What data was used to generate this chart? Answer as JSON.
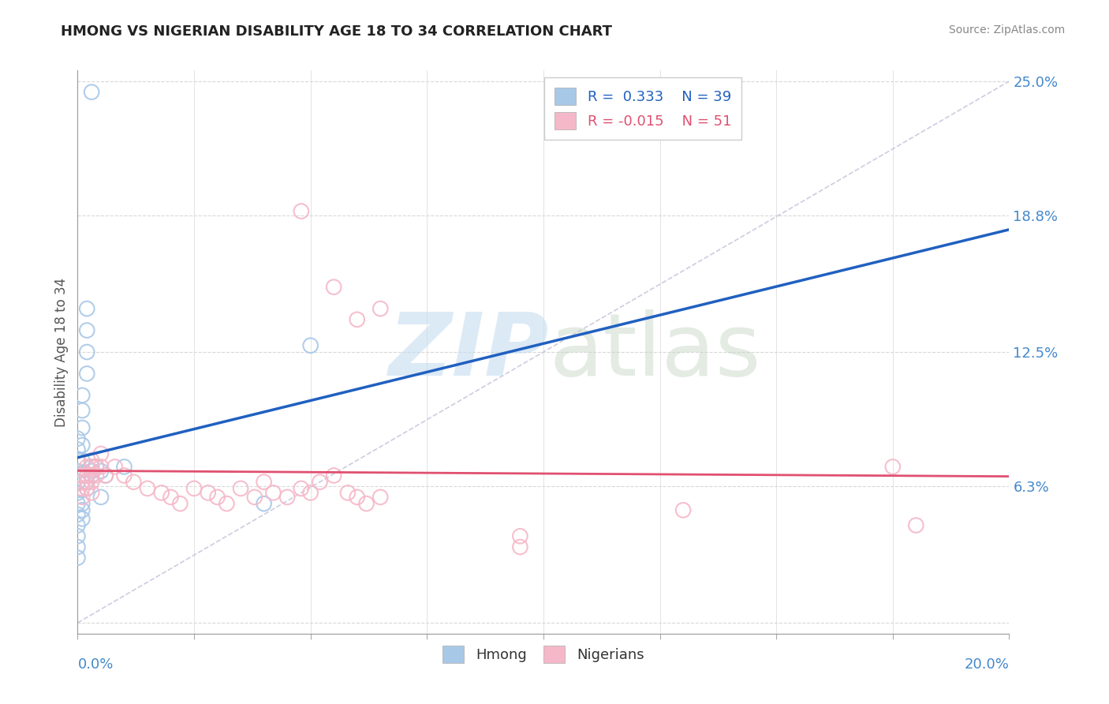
{
  "title": "HMONG VS NIGERIAN DISABILITY AGE 18 TO 34 CORRELATION CHART",
  "source": "Source: ZipAtlas.com",
  "xmin": 0.0,
  "xmax": 0.2,
  "ymin": 0.0,
  "ymax": 0.25,
  "hmong_R": 0.333,
  "hmong_N": 39,
  "nigerian_R": -0.015,
  "nigerian_N": 51,
  "hmong_color": "#a8c8e8",
  "nigerian_color": "#f5b8c8",
  "hmong_line_color": "#2060c0",
  "nigerian_line_color": "#e05070",
  "ref_line_color": "#c0c0d8",
  "background_color": "#ffffff",
  "grid_color": "#d8d8d8",
  "ylabel_ticks": [
    0.0,
    0.063,
    0.125,
    0.188,
    0.25
  ],
  "ylabel_tick_labels": [
    "",
    "6.3%",
    "12.5%",
    "18.8%",
    "25.0%"
  ],
  "hmong_points_x": [
    0.003,
    0.002,
    0.002,
    0.002,
    0.002,
    0.001,
    0.001,
    0.001,
    0.001,
    0.001,
    0.001,
    0.0,
    0.0,
    0.0,
    0.0,
    0.0,
    0.0,
    0.0,
    0.0,
    0.0,
    0.0,
    0.0,
    0.0,
    0.001,
    0.001,
    0.001,
    0.002,
    0.002,
    0.002,
    0.003,
    0.003,
    0.003,
    0.004,
    0.005,
    0.006,
    0.01,
    0.04,
    0.05,
    0.005
  ],
  "hmong_points_y": [
    0.245,
    0.145,
    0.135,
    0.125,
    0.115,
    0.105,
    0.098,
    0.09,
    0.082,
    0.075,
    0.068,
    0.085,
    0.08,
    0.075,
    0.07,
    0.065,
    0.06,
    0.055,
    0.05,
    0.045,
    0.04,
    0.035,
    0.03,
    0.055,
    0.052,
    0.048,
    0.068,
    0.065,
    0.062,
    0.072,
    0.07,
    0.068,
    0.072,
    0.07,
    0.068,
    0.072,
    0.055,
    0.128,
    0.058
  ],
  "nigerian_points_x": [
    0.001,
    0.001,
    0.001,
    0.001,
    0.002,
    0.002,
    0.002,
    0.002,
    0.003,
    0.003,
    0.003,
    0.003,
    0.003,
    0.004,
    0.004,
    0.005,
    0.005,
    0.006,
    0.008,
    0.01,
    0.012,
    0.015,
    0.018,
    0.02,
    0.022,
    0.025,
    0.028,
    0.03,
    0.032,
    0.035,
    0.038,
    0.04,
    0.042,
    0.045,
    0.048,
    0.05,
    0.052,
    0.055,
    0.058,
    0.06,
    0.062,
    0.065,
    0.048,
    0.055,
    0.06,
    0.065,
    0.095,
    0.095,
    0.13,
    0.175,
    0.18
  ],
  "nigerian_points_y": [
    0.068,
    0.065,
    0.062,
    0.058,
    0.072,
    0.068,
    0.065,
    0.062,
    0.075,
    0.072,
    0.068,
    0.065,
    0.06,
    0.072,
    0.068,
    0.078,
    0.072,
    0.068,
    0.072,
    0.068,
    0.065,
    0.062,
    0.06,
    0.058,
    0.055,
    0.062,
    0.06,
    0.058,
    0.055,
    0.062,
    0.058,
    0.065,
    0.06,
    0.058,
    0.062,
    0.06,
    0.065,
    0.068,
    0.06,
    0.058,
    0.055,
    0.058,
    0.19,
    0.155,
    0.14,
    0.145,
    0.04,
    0.035,
    0.052,
    0.072,
    0.045
  ],
  "hmong_line_x0": 0.0,
  "hmong_line_x1": 0.2,
  "nigerian_line_x0": 0.0,
  "nigerian_line_x1": 0.2
}
